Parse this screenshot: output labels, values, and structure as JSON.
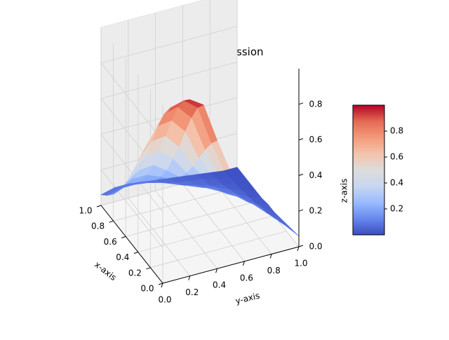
{
  "chart_data": {
    "type": "surface3d",
    "title": "NeuralNetwork regression",
    "xlabel": "x-axis",
    "ylabel": "y-axis",
    "zlabel": "z-axis",
    "xlim": [
      0,
      1
    ],
    "ylim": [
      0,
      1
    ],
    "zlim": [
      0,
      1
    ],
    "x_ticks": [
      "0.0",
      "0.2",
      "0.4",
      "0.6",
      "0.8",
      "1.0"
    ],
    "y_ticks": [
      "0.0",
      "0.2",
      "0.4",
      "0.6",
      "0.8",
      "1.0"
    ],
    "z_ticks": [
      "0.0",
      "0.2",
      "0.4",
      "0.6",
      "0.8"
    ],
    "grid": true,
    "colormap": "coolwarm",
    "colormap_stops": [
      "#3b4cc0",
      "#6788ee",
      "#9abbff",
      "#c9d7f0",
      "#dddcdc",
      "#f4c3ab",
      "#f49a7b",
      "#e36a53",
      "#b40426"
    ],
    "colorbar": {
      "range": [
        0.0,
        1.0
      ],
      "tick_values": [
        0.2,
        0.4,
        0.6,
        0.8
      ],
      "ticks": [
        "0.2",
        "0.4",
        "0.6",
        "0.8"
      ]
    },
    "surface": {
      "grid_x": [
        0.0,
        0.1,
        0.2,
        0.3,
        0.4,
        0.5,
        0.6,
        0.7,
        0.8,
        0.9,
        1.0
      ],
      "grid_y": [
        0.0,
        0.1,
        0.2,
        0.3,
        0.4,
        0.5,
        0.6,
        0.7,
        0.8,
        0.9,
        1.0
      ],
      "z": [
        [
          0.85,
          0.97,
          0.99,
          0.94,
          0.72,
          0.52,
          0.4,
          0.33,
          0.24,
          0.14,
          0.06
        ],
        [
          0.8,
          0.92,
          0.94,
          0.88,
          0.66,
          0.48,
          0.37,
          0.3,
          0.21,
          0.12,
          0.05
        ],
        [
          0.72,
          0.84,
          0.86,
          0.78,
          0.58,
          0.42,
          0.33,
          0.26,
          0.18,
          0.1,
          0.04
        ],
        [
          0.62,
          0.73,
          0.74,
          0.66,
          0.49,
          0.36,
          0.28,
          0.22,
          0.15,
          0.08,
          0.03
        ],
        [
          0.51,
          0.6,
          0.61,
          0.53,
          0.4,
          0.3,
          0.23,
          0.18,
          0.12,
          0.07,
          0.02
        ],
        [
          0.4,
          0.47,
          0.48,
          0.42,
          0.32,
          0.24,
          0.19,
          0.14,
          0.1,
          0.05,
          0.02
        ],
        [
          0.3,
          0.35,
          0.36,
          0.31,
          0.25,
          0.19,
          0.15,
          0.11,
          0.08,
          0.04,
          0.01
        ],
        [
          0.22,
          0.26,
          0.26,
          0.23,
          0.18,
          0.14,
          0.11,
          0.09,
          0.06,
          0.03,
          0.01
        ],
        [
          0.15,
          0.18,
          0.18,
          0.16,
          0.13,
          0.1,
          0.08,
          0.06,
          0.04,
          0.02,
          0.01
        ],
        [
          0.1,
          0.12,
          0.12,
          0.11,
          0.09,
          0.07,
          0.06,
          0.05,
          0.03,
          0.02,
          0.01
        ],
        [
          0.06,
          0.08,
          0.08,
          0.07,
          0.06,
          0.05,
          0.04,
          0.03,
          0.02,
          0.01,
          0.01
        ]
      ]
    }
  }
}
